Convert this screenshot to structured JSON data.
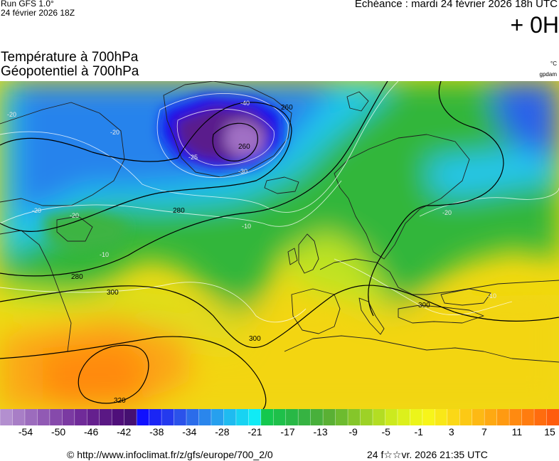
{
  "header": {
    "run_title": "Run GFS 1.0°",
    "run_date": "24 février 2026 18Z",
    "valid_time": "Echéance : mardi 24 février 2026 18h UTC",
    "lead_time": "+ 0H"
  },
  "parameters": {
    "temperature": "Température à 700hPa",
    "geopotential": "Géopotentiel à 700hPa",
    "unit_temperature": "°C",
    "unit_geopotential": "gpdam"
  },
  "contours": {
    "geopotential_labels": [
      "260",
      "260",
      "280",
      "280",
      "300",
      "300",
      "300",
      "320"
    ],
    "isotherm_labels": [
      "-40",
      "-30",
      "-25",
      "-20",
      "-20",
      "-20",
      "-20",
      "-20",
      "-10",
      "-10",
      "-10"
    ]
  },
  "scale": {
    "colors": [
      "#b38fcf",
      "#a87ec6",
      "#9c6cbd",
      "#915ab4",
      "#864aab",
      "#7b3aa2",
      "#702b99",
      "#65208e",
      "#5a1884",
      "#4f0f7a",
      "#451071",
      "#1010ff",
      "#1a25f5",
      "#243aee",
      "#2b52ea",
      "#2b6cea",
      "#2a86ec",
      "#26a0ee",
      "#1fbbf0",
      "#18d3f2",
      "#10ebf5",
      "#14c84e",
      "#1ec04a",
      "#28b846",
      "#36b342",
      "#48b03b",
      "#5ab034",
      "#6dbb2f",
      "#85c62a",
      "#9dd226",
      "#b3dd23",
      "#ccea1e",
      "#dcf01c",
      "#ecf51a",
      "#f7f51a",
      "#f9e818",
      "#fbd816",
      "#fcc915",
      "#fdb914",
      "#fea912",
      "#ff9a11",
      "#ff8a10",
      "#ff7c0f",
      "#ff6c0e",
      "#ff5c0d"
    ],
    "labels": [
      "-54",
      "-50",
      "-46",
      "-42",
      "-38",
      "-34",
      "-28",
      "-21",
      "-17",
      "-13",
      "-9",
      "-5",
      "-1",
      "3",
      "7",
      "11",
      "15"
    ]
  },
  "footer": {
    "source": "© http://www.infoclimat.fr/z/gfs/europe/700_2/0",
    "time": "24 f☆☆vr. 2026 21:35 UTC"
  }
}
